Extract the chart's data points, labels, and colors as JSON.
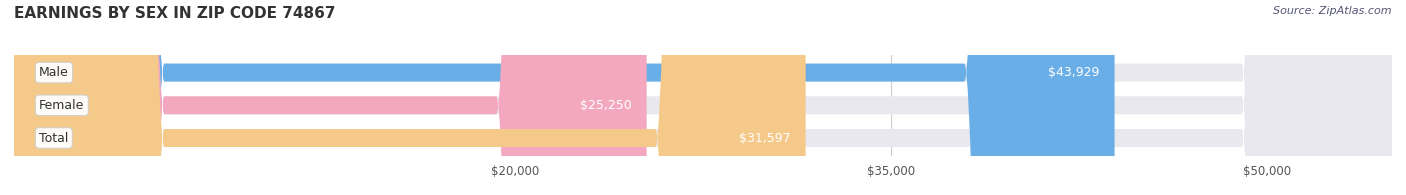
{
  "title": "EARNINGS BY SEX IN ZIP CODE 74867",
  "source": "Source: ZipAtlas.com",
  "categories": [
    "Male",
    "Female",
    "Total"
  ],
  "values": [
    43929,
    25250,
    31597
  ],
  "bar_colors": [
    "#6aaee8",
    "#f4a8c0",
    "#f5c98a"
  ],
  "bar_bg_color": "#e8e8ee",
  "label_texts": [
    "$43,929",
    "$25,250",
    "$31,597"
  ],
  "x_min": 0,
  "x_max": 55000,
  "x_ticks": [
    20000,
    35000,
    50000
  ],
  "x_tick_labels": [
    "$20,000",
    "$35,000",
    "$50,000"
  ],
  "bar_height": 0.55,
  "fig_width": 14.06,
  "fig_height": 1.95,
  "title_fontsize": 11,
  "label_fontsize": 9,
  "tick_fontsize": 8.5,
  "source_fontsize": 8,
  "category_fontsize": 9,
  "title_color": "#333333",
  "tick_color": "#555555",
  "source_color": "#555577",
  "category_color": "#333333",
  "value_label_color": "#ffffff",
  "grid_color": "#cccccc"
}
